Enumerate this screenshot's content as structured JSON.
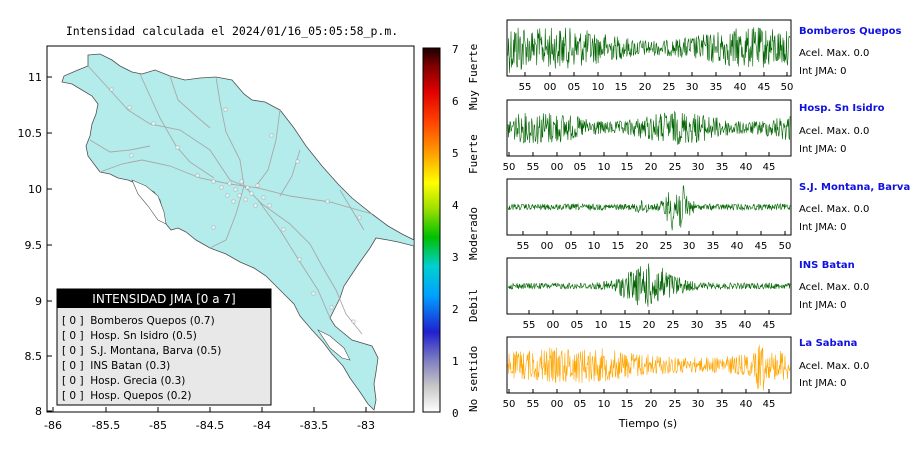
{
  "map": {
    "title": "Intensidad calculada el 2024/01/16_05:05:58_p.m.",
    "x_ticks": [
      "-86",
      "-85.5",
      "-85",
      "-84.5",
      "-84",
      "-83.5",
      "-83"
    ],
    "y_ticks": [
      "11",
      "10.5",
      "10",
      "9.5",
      "9",
      "8.5",
      "8"
    ],
    "legend": {
      "title": "INTENSIDAD JMA [0 a 7]",
      "items": [
        "[ 0 ]  Bomberos Quepos (0.7)",
        "[ 0 ]  Hosp. Sn Isidro (0.5)",
        "[ 0 ]  S.J. Montana, Barva (0.5)",
        "[ 0 ]  INS Batan (0.3)",
        "[ 0 ]  Hosp. Grecia (0.3)",
        "[ 0 ]  Hosp. Quepos (0.2)"
      ]
    },
    "colors": {
      "land": "#b4ecec",
      "roads": "#a8a8a8",
      "border": "#505050"
    }
  },
  "colorbar": {
    "ticks": [
      "0",
      "1",
      "2",
      "3",
      "4",
      "5",
      "6",
      "7"
    ],
    "labels": [
      "No sentido",
      "Debil",
      "Moderado",
      "Fuerte",
      "Muy Fuerte"
    ]
  },
  "traces": {
    "x_label": "Tiempo (s)",
    "panels": [
      {
        "station": "Bomberos Quepos",
        "acel": "Acel. Max. 0.0",
        "jma": "Int JMA: 0",
        "color": "#006400",
        "ticks": [
          "55",
          "00",
          "05",
          "10",
          "15",
          "20",
          "25",
          "30",
          "35",
          "40",
          "45",
          "50"
        ]
      },
      {
        "station": "Hosp. Sn Isidro",
        "acel": "Acel. Max. 0.0",
        "jma": "Int JMA: 0",
        "color": "#006400",
        "ticks": [
          "50",
          "55",
          "00",
          "05",
          "10",
          "15",
          "20",
          "25",
          "30",
          "35",
          "40",
          "45"
        ]
      },
      {
        "station": "S.J. Montana, Barva",
        "acel": "Acel. Max. 0.0",
        "jma": "Int JMA: 0",
        "color": "#006400",
        "ticks": [
          "55",
          "00",
          "05",
          "10",
          "15",
          "20",
          "25",
          "30",
          "35",
          "40",
          "45",
          "50"
        ]
      },
      {
        "station": "INS Batan",
        "acel": "Acel. Max. 0.0",
        "jma": "Int JMA: 0",
        "color": "#006400",
        "ticks": [
          "55",
          "00",
          "05",
          "10",
          "15",
          "20",
          "25",
          "30",
          "35",
          "40",
          "45"
        ]
      },
      {
        "station": "La Sabana",
        "acel": "Acel. Max. 0.0",
        "jma": "Int JMA: 0",
        "color": "#ffa500",
        "ticks": [
          "50",
          "55",
          "00",
          "05",
          "10",
          "15",
          "20",
          "25",
          "30",
          "35",
          "40",
          "45"
        ]
      }
    ]
  }
}
